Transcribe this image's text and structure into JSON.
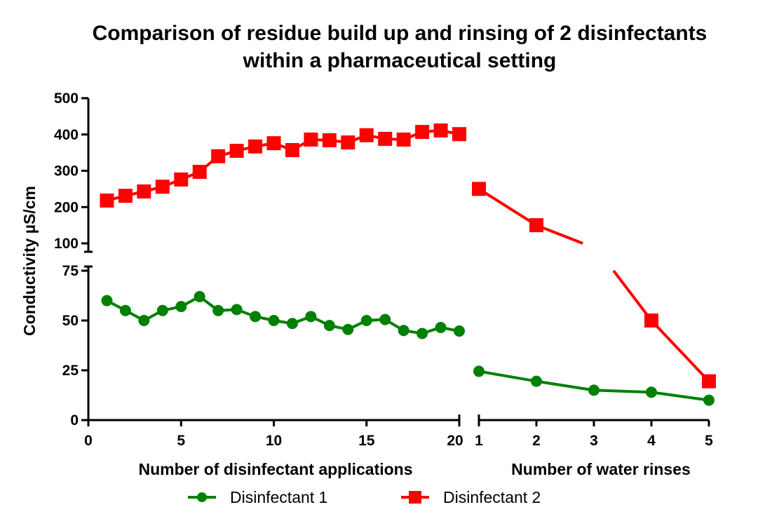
{
  "chart_data": {
    "type": "line",
    "title": [
      "Comparison of residue build up and rinsing of 2 disinfectants",
      "within a pharmaceutical setting"
    ],
    "ylabel": "Conductivity µS/cm",
    "y_axis_segments": [
      {
        "name": "upper",
        "range": [
          100,
          500
        ],
        "ticks": [
          100,
          200,
          300,
          400,
          500
        ]
      },
      {
        "name": "lower",
        "range": [
          0,
          75
        ],
        "ticks": [
          0,
          25,
          50,
          75
        ]
      }
    ],
    "x_axis_segments": [
      {
        "name": "applications",
        "xlabel": "Number of disinfectant applications",
        "range": [
          0,
          20
        ],
        "ticks": [
          0,
          5,
          10,
          15,
          20
        ]
      },
      {
        "name": "rinses",
        "xlabel": "Number of water rinses",
        "range": [
          1,
          5
        ],
        "ticks": [
          1,
          2,
          3,
          4,
          5
        ]
      }
    ],
    "series": [
      {
        "name": "Disinfectant 1",
        "color": "#008000",
        "marker": "circle",
        "applications": {
          "x": [
            1,
            2,
            3,
            4,
            5,
            6,
            7,
            8,
            9,
            10,
            11,
            12,
            13,
            14,
            15,
            16,
            17,
            18,
            19,
            20
          ],
          "y": [
            60,
            55,
            50,
            55,
            57,
            62,
            55,
            55.5,
            52,
            50,
            48.5,
            52,
            47.5,
            45.5,
            50,
            50.5,
            45,
            43.5,
            46.5,
            44.7
          ]
        },
        "rinses": {
          "x": [
            1,
            2,
            3,
            4,
            5
          ],
          "y": [
            24.5,
            19.5,
            15,
            14,
            10
          ]
        }
      },
      {
        "name": "Disinfectant 2",
        "color": "#ff0000",
        "marker": "square",
        "applications": {
          "x": [
            1,
            2,
            3,
            4,
            5,
            6,
            7,
            8,
            9,
            10,
            11,
            12,
            13,
            14,
            15,
            16,
            17,
            18,
            19,
            20
          ],
          "y": [
            218,
            231,
            243,
            256,
            276,
            297,
            340,
            355,
            367,
            376,
            357,
            386,
            384,
            378,
            398,
            388,
            386,
            407,
            411,
            401
          ]
        },
        "rinses": {
          "x": [
            1,
            2,
            3,
            4,
            5
          ],
          "y": [
            250,
            150,
            88,
            50,
            19.5
          ]
        }
      }
    ],
    "legend": {
      "position": "bottom-center",
      "entries": [
        "Disinfectant 1",
        "Disinfectant 2"
      ]
    },
    "grid": false
  }
}
